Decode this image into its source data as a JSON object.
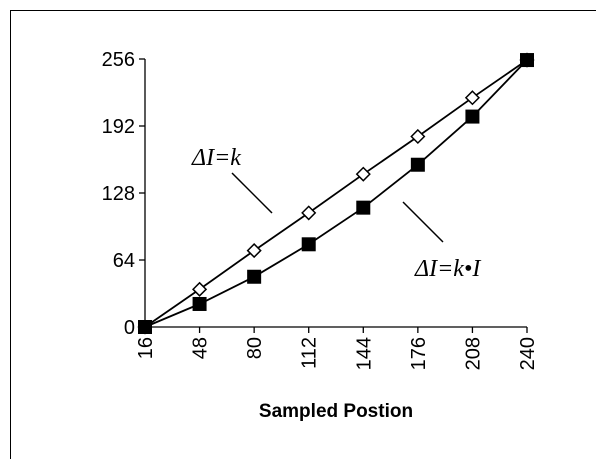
{
  "chart_data": {
    "type": "line",
    "title": "",
    "xlabel": "Sampled Postion",
    "ylabel": "",
    "x": [
      16,
      48,
      80,
      112,
      144,
      176,
      208,
      240
    ],
    "x_tick_labels": [
      "16",
      "48",
      "80",
      "112",
      "144",
      "176",
      "208",
      "240"
    ],
    "y_ticks": [
      0,
      64,
      128,
      192,
      256
    ],
    "y_tick_labels": [
      "0",
      "64",
      "128",
      "192",
      "256"
    ],
    "xlim": [
      16,
      240
    ],
    "ylim": [
      0,
      256
    ],
    "grid": false,
    "legend": "none",
    "series": [
      {
        "label": "ΔI=k",
        "marker": "open-diamond",
        "color": "#000000",
        "values": [
          0,
          36,
          73,
          109,
          146,
          182,
          219,
          255
        ]
      },
      {
        "label": "ΔI=k•I",
        "marker": "filled-square",
        "color": "#000000",
        "values": [
          0,
          22,
          48,
          79,
          114,
          155,
          201,
          255
        ]
      }
    ],
    "annotations": [
      {
        "text": "ΔI=k",
        "series": 0
      },
      {
        "text": "ΔI=k•I",
        "series": 1
      }
    ]
  }
}
